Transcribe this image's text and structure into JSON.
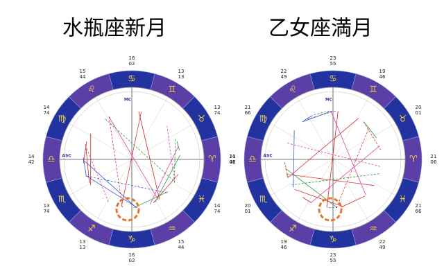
{
  "charts": [
    {
      "title": "水瓶座新月",
      "signs": [
        "♋",
        "♊",
        "♉",
        "♈",
        "♓",
        "♒",
        "♑",
        "♐",
        "♏",
        "♎",
        "♍",
        "♌"
      ],
      "cusps": [
        [
          "16",
          "02"
        ],
        [
          "13",
          "13"
        ],
        [
          "13",
          "74"
        ],
        [
          "14",
          "42"
        ],
        [
          "14",
          "74"
        ],
        [
          "15",
          "44"
        ],
        [
          "16",
          "02"
        ],
        [
          "13",
          "13"
        ],
        [
          "13",
          "74"
        ],
        [
          "14",
          "42"
        ],
        [
          "14",
          "74"
        ],
        [
          "15",
          "44"
        ]
      ],
      "mc": "MC",
      "asc": "ASC"
    },
    {
      "title": "乙女座満月",
      "signs": [
        "♋",
        "♊",
        "♉",
        "♈",
        "♓",
        "♒",
        "♑",
        "♐",
        "♏",
        "♎",
        "♍",
        "♌"
      ],
      "cusps": [
        [
          "23",
          "55"
        ],
        [
          "19",
          "46"
        ],
        [
          "20",
          "01"
        ],
        [
          "21",
          "06"
        ],
        [
          "21",
          "66"
        ],
        [
          "22",
          "49"
        ],
        [
          "23",
          "55"
        ],
        [
          "19",
          "46"
        ],
        [
          "20",
          "01"
        ],
        [
          "21",
          "06"
        ],
        [
          "21",
          "66"
        ],
        [
          "22",
          "49"
        ]
      ],
      "mc": "MC",
      "asc": "ASC"
    }
  ]
}
